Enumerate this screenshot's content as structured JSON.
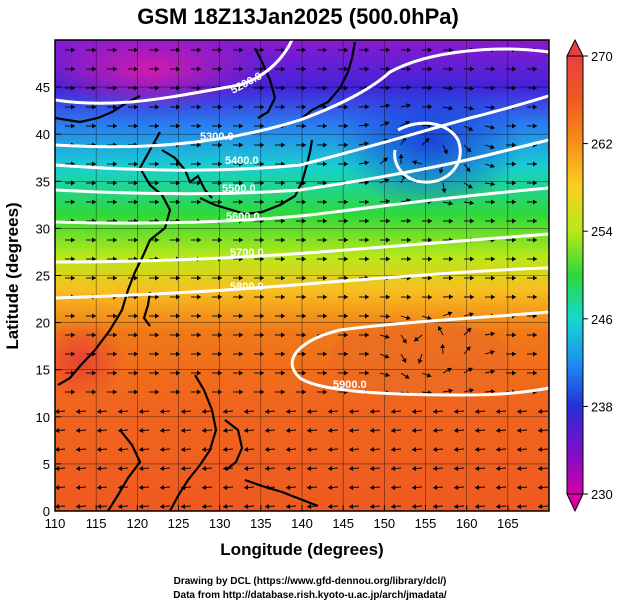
{
  "title": "GSM 18Z13Jan2025 (500.0hPa)",
  "x_axis": {
    "label": "Longitude (degrees)",
    "range": [
      110,
      170
    ],
    "ticks": [
      110,
      115,
      120,
      125,
      130,
      135,
      140,
      145,
      150,
      155,
      160,
      165
    ]
  },
  "y_axis": {
    "label": "Latitude  (degrees)",
    "range": [
      0,
      50
    ],
    "ticks": [
      0,
      5,
      10,
      15,
      20,
      25,
      30,
      35,
      40,
      45
    ]
  },
  "colorbar": {
    "range": [
      230,
      270
    ],
    "ticks": [
      "230",
      "238",
      "246",
      "254",
      "262",
      "270"
    ],
    "colors": [
      "#d400a8",
      "#7a10c8",
      "#2530d8",
      "#1e8ff0",
      "#15d8d0",
      "#2ed83a",
      "#b8e818",
      "#f8d020",
      "#f89018",
      "#f05a20",
      "#e84040"
    ]
  },
  "contours": [
    {
      "label": "5200.0"
    },
    {
      "label": "5300.0"
    },
    {
      "label": "5400.0"
    },
    {
      "label": "5500.0"
    },
    {
      "label": "5600.0"
    },
    {
      "label": "5700.0"
    },
    {
      "label": "5800.0"
    },
    {
      "label": "5900.0"
    }
  ],
  "credits": {
    "drawing": "Drawing by DCL (https://www.gfd-dennou.org/library/dcl/)",
    "data": "Data from http://database.rish.kyoto-u.ac.jp/arch/jmadata/"
  }
}
